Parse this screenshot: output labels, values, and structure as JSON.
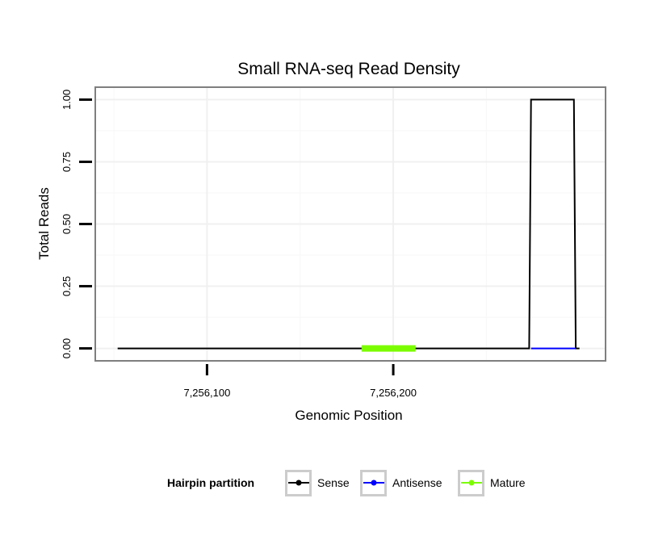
{
  "chart_data": {
    "type": "line",
    "title": "Small RNA-seq Read Density",
    "xlabel": "Genomic Position",
    "ylabel": "Total Reads",
    "xlim": [
      7256040,
      7256314
    ],
    "ylim": [
      -0.05,
      1.05
    ],
    "x_ticks": [
      {
        "value": 7256100,
        "label": "7,256,100"
      },
      {
        "value": 7256200,
        "label": "7,256,200"
      }
    ],
    "x_minor_ticks": [
      7256050,
      7256150,
      7256250
    ],
    "y_ticks": [
      {
        "value": 0,
        "label": "0.00"
      },
      {
        "value": 0.25,
        "label": "0.25"
      },
      {
        "value": 0.5,
        "label": "0.50"
      },
      {
        "value": 0.75,
        "label": "0.75"
      },
      {
        "value": 1.0,
        "label": "1.00"
      }
    ],
    "y_minor_ticks": [
      0.125,
      0.375,
      0.625,
      0.875
    ],
    "grid": true,
    "series": [
      {
        "name": "Sense",
        "color": "#000000",
        "x": [
          7256052,
          7256273,
          7256274,
          7256297,
          7256298,
          7256300
        ],
        "y": [
          0,
          0,
          1,
          1,
          0,
          0
        ]
      },
      {
        "name": "Antisense",
        "color": "#0000ff",
        "x": [
          7256274,
          7256298
        ],
        "y": [
          0,
          0
        ]
      },
      {
        "name": "Mature",
        "color": "#7cfc00",
        "x": [
          7256183,
          7256212
        ],
        "y": [
          0,
          0
        ]
      }
    ],
    "legend": {
      "title": "Hairpin partition",
      "position": "bottom",
      "items": [
        {
          "label": "Sense",
          "color": "#000000"
        },
        {
          "label": "Antisense",
          "color": "#0000ff"
        },
        {
          "label": "Mature",
          "color": "#7cfc00"
        }
      ]
    }
  }
}
